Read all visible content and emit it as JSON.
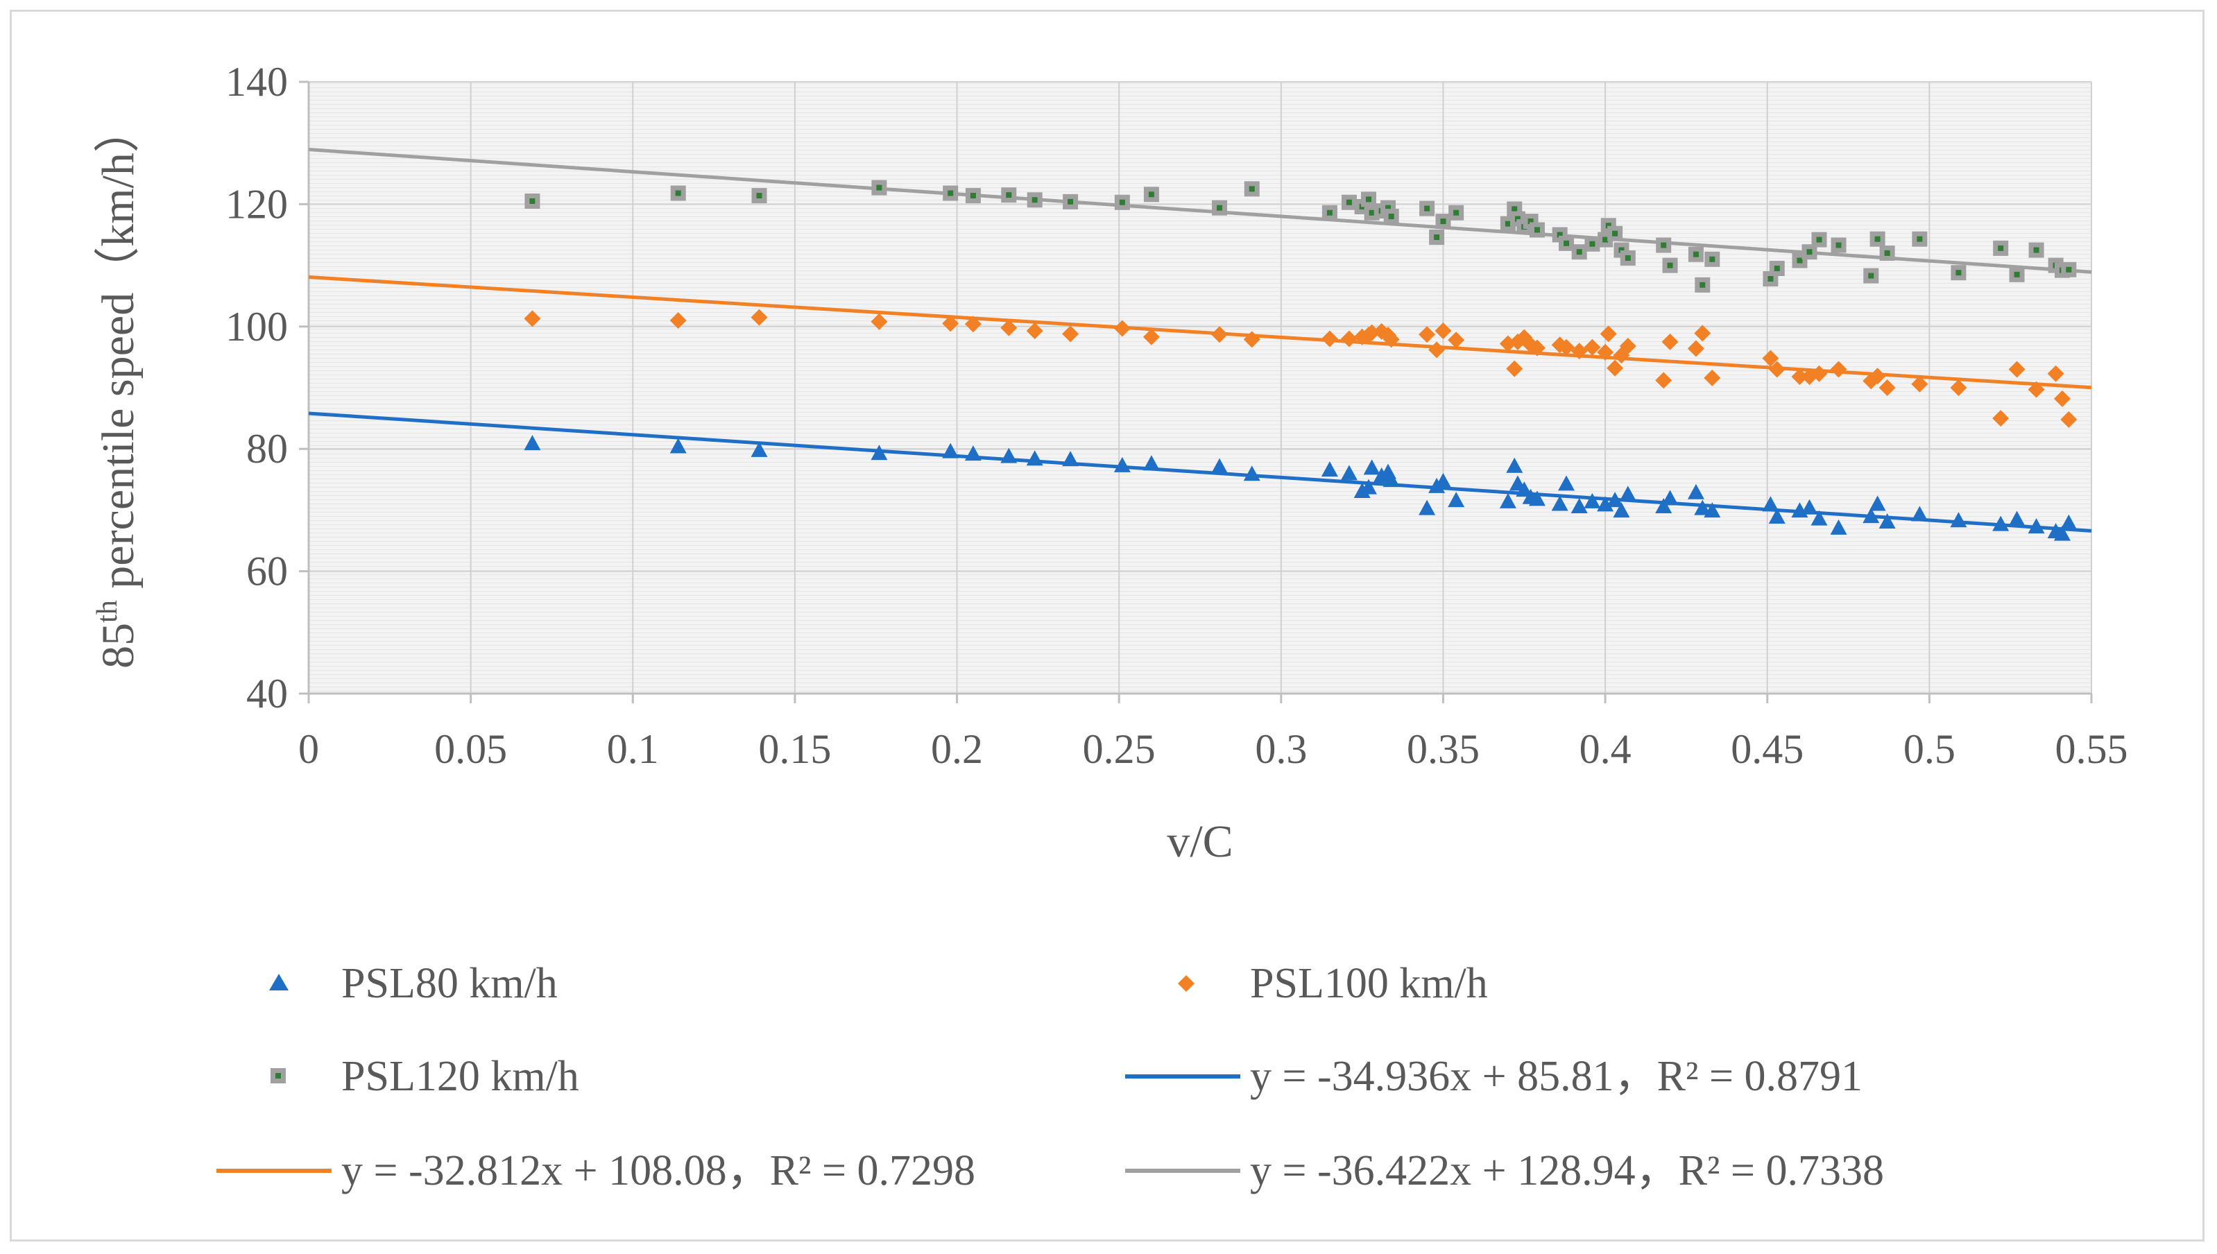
{
  "chart_data": {
    "type": "scatter",
    "xlabel": "v/C",
    "ylabel_main": "85",
    "ylabel_sup": "th",
    "ylabel_rest": " percentile speed（km/h）",
    "xlim": [
      0,
      0.55
    ],
    "ylim": [
      40,
      140
    ],
    "x_ticks": [
      0,
      0.05,
      0.1,
      0.15,
      0.2,
      0.25,
      0.3,
      0.35,
      0.4,
      0.45,
      0.5,
      0.55
    ],
    "x_tick_labels": [
      "0",
      "0.05",
      "0.1",
      "0.15",
      "0.2",
      "0.25",
      "0.3",
      "0.35",
      "0.4",
      "0.45",
      "0.5",
      "0.55"
    ],
    "y_ticks": [
      40,
      60,
      80,
      100,
      120,
      140
    ],
    "y_tick_labels": [
      "40",
      "60",
      "80",
      "100",
      "120",
      "140"
    ],
    "grid": true,
    "legend_position": "bottom",
    "series": [
      {
        "name": "PSL80 km/h",
        "marker": "triangle",
        "color": "#1f6fc6",
        "x": [
          0.069,
          0.114,
          0.139,
          0.176,
          0.198,
          0.205,
          0.216,
          0.224,
          0.235,
          0.251,
          0.26,
          0.281,
          0.291,
          0.315,
          0.321,
          0.325,
          0.327,
          0.328,
          0.331,
          0.333,
          0.334,
          0.345,
          0.348,
          0.35,
          0.354,
          0.37,
          0.372,
          0.373,
          0.375,
          0.377,
          0.379,
          0.386,
          0.388,
          0.392,
          0.396,
          0.4,
          0.403,
          0.405,
          0.407,
          0.418,
          0.42,
          0.428,
          0.43,
          0.433,
          0.451,
          0.453,
          0.46,
          0.463,
          0.466,
          0.472,
          0.482,
          0.484,
          0.487,
          0.497,
          0.509,
          0.522,
          0.527,
          0.533,
          0.539,
          0.541,
          0.543
        ],
        "y": [
          80.8,
          80.3,
          79.7,
          79.2,
          79.5,
          79.1,
          78.7,
          78.3,
          78.2,
          77.2,
          77.5,
          77.0,
          75.8,
          76.5,
          75.9,
          73.0,
          73.6,
          76.8,
          75.5,
          76.1,
          74.8,
          70.2,
          73.8,
          74.6,
          71.5,
          71.3,
          77.1,
          74.2,
          73.2,
          72.0,
          71.7,
          70.9,
          74.2,
          70.5,
          71.3,
          70.8,
          71.5,
          69.8,
          72.5,
          70.5,
          71.8,
          72.8,
          70.2,
          69.8,
          70.8,
          68.8,
          69.8,
          70.3,
          68.5,
          67.0,
          68.9,
          70.9,
          68.0,
          69.2,
          68.2,
          67.6,
          68.4,
          67.2,
          66.4,
          66.0,
          67.8
        ]
      },
      {
        "name": "PSL100 km/h",
        "marker": "diamond",
        "color": "#f28025",
        "x": [
          0.069,
          0.114,
          0.139,
          0.176,
          0.198,
          0.205,
          0.216,
          0.224,
          0.235,
          0.251,
          0.26,
          0.281,
          0.291,
          0.315,
          0.321,
          0.325,
          0.327,
          0.328,
          0.331,
          0.333,
          0.334,
          0.345,
          0.348,
          0.35,
          0.354,
          0.37,
          0.372,
          0.373,
          0.375,
          0.377,
          0.379,
          0.386,
          0.388,
          0.392,
          0.396,
          0.4,
          0.401,
          0.403,
          0.405,
          0.407,
          0.418,
          0.42,
          0.428,
          0.43,
          0.433,
          0.451,
          0.453,
          0.46,
          0.463,
          0.466,
          0.472,
          0.482,
          0.484,
          0.487,
          0.497,
          0.509,
          0.522,
          0.527,
          0.533,
          0.539,
          0.541,
          0.543
        ],
        "y": [
          101.3,
          101.0,
          101.5,
          100.8,
          100.5,
          100.4,
          99.8,
          99.3,
          98.8,
          99.7,
          98.3,
          98.7,
          97.9,
          98.0,
          98.0,
          98.3,
          98.6,
          99.0,
          99.2,
          98.6,
          97.9,
          98.7,
          96.2,
          99.3,
          97.8,
          97.2,
          93.1,
          97.5,
          98.2,
          97.0,
          96.5,
          97.0,
          96.6,
          96.0,
          96.6,
          95.8,
          98.8,
          93.2,
          95.3,
          96.8,
          91.2,
          97.5,
          96.4,
          98.9,
          91.6,
          94.8,
          93.0,
          91.8,
          91.8,
          92.3,
          93.0,
          91.1,
          91.9,
          90.0,
          90.6,
          90.0,
          85.0,
          93.0,
          89.7,
          92.3,
          88.2,
          84.8
        ]
      },
      {
        "name": "PSL120 km/h",
        "marker": "square",
        "color": "#a0a0a0",
        "inner_color": "#2e7d32",
        "x": [
          0.069,
          0.114,
          0.139,
          0.176,
          0.198,
          0.205,
          0.216,
          0.224,
          0.235,
          0.251,
          0.26,
          0.281,
          0.291,
          0.315,
          0.321,
          0.325,
          0.327,
          0.328,
          0.331,
          0.333,
          0.334,
          0.345,
          0.348,
          0.35,
          0.354,
          0.37,
          0.372,
          0.373,
          0.375,
          0.377,
          0.379,
          0.386,
          0.388,
          0.392,
          0.396,
          0.4,
          0.401,
          0.403,
          0.405,
          0.407,
          0.418,
          0.42,
          0.428,
          0.43,
          0.433,
          0.451,
          0.453,
          0.46,
          0.463,
          0.466,
          0.472,
          0.482,
          0.484,
          0.487,
          0.497,
          0.509,
          0.522,
          0.527,
          0.533,
          0.539,
          0.541,
          0.543
        ],
        "y": [
          120.5,
          121.8,
          121.4,
          122.7,
          121.8,
          121.4,
          121.5,
          120.7,
          120.4,
          120.3,
          121.6,
          119.4,
          122.5,
          118.6,
          120.3,
          119.6,
          120.8,
          118.6,
          118.9,
          119.4,
          118.0,
          119.3,
          114.6,
          117.2,
          118.6,
          116.8,
          119.2,
          117.6,
          116.3,
          117.2,
          115.8,
          115.0,
          113.6,
          112.2,
          113.5,
          114.2,
          116.5,
          115.2,
          112.5,
          111.2,
          113.3,
          110.0,
          111.8,
          106.8,
          111.0,
          107.8,
          109.5,
          110.8,
          112.2,
          114.2,
          113.3,
          108.3,
          114.3,
          112.0,
          114.3,
          108.8,
          112.8,
          108.5,
          112.5,
          110.0,
          109.2,
          109.3
        ]
      }
    ],
    "trendlines": [
      {
        "name": "y = -34.936x + 85.81，R² = 0.8791",
        "slope": -34.936,
        "intercept": 85.81,
        "color": "#1f6fc6"
      },
      {
        "name": "y = -32.812x + 108.08，R² = 0.7298",
        "slope": -32.812,
        "intercept": 108.08,
        "color": "#f28025"
      },
      {
        "name": "y = -36.422x + 128.94，R² = 0.7338",
        "slope": -36.422,
        "intercept": 128.94,
        "color": "#a0a0a0"
      }
    ]
  },
  "legend": {
    "psl80": "PSL80 km/h",
    "psl100": "PSL100 km/h",
    "psl120": "PSL120 km/h",
    "trend80": "y = -34.936x + 85.81，R² = 0.8791",
    "trend100": "y = -32.812x + 108.08，R² = 0.7298",
    "trend120": "y = -36.422x + 128.94，R² = 0.7338"
  },
  "colors": {
    "blue": "#1f6fc6",
    "orange": "#f28025",
    "gray": "#a0a0a0",
    "green": "#2e7d32"
  }
}
